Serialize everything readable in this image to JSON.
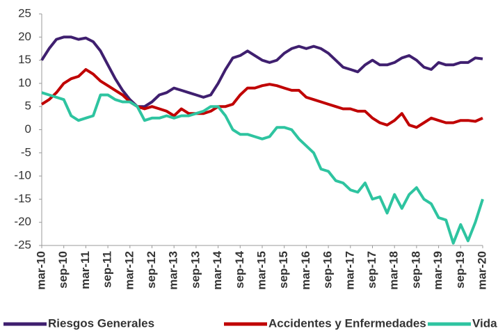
{
  "chart_data": {
    "type": "line",
    "categories": [
      "mar-10",
      null,
      null,
      "sep-10",
      null,
      null,
      "mar-11",
      null,
      null,
      "sep-11",
      null,
      null,
      "mar-12",
      null,
      null,
      "sep-12",
      null,
      null,
      "mar-13",
      null,
      null,
      "sep-13",
      null,
      null,
      "mar-14",
      null,
      null,
      "sep-14",
      null,
      null,
      "mar-15",
      null,
      null,
      "sep-15",
      null,
      null,
      "mar-16",
      null,
      null,
      "sep-16",
      null,
      null,
      "mar-17",
      null,
      null,
      "sep-17",
      null,
      null,
      "mar-18",
      null,
      null,
      "sep-18",
      null,
      null,
      "mar-19",
      null,
      null,
      "sep-19",
      null,
      null,
      "mar-20"
    ],
    "series": [
      {
        "name": "Riesgos Generales",
        "color": "#3f1f6f",
        "values": [
          15,
          17.5,
          19.5,
          20,
          20,
          19.5,
          19.8,
          19,
          17,
          14,
          11,
          8.5,
          6.5,
          5,
          5,
          6,
          7.5,
          8,
          9,
          8.5,
          8,
          7.5,
          7,
          7.5,
          10,
          13,
          15.5,
          16,
          17,
          16,
          15,
          14.5,
          15,
          16.5,
          17.5,
          18,
          17.5,
          18,
          17.5,
          16.5,
          15,
          13.5,
          13,
          12.5,
          14,
          15,
          14,
          14,
          14.5,
          15.5,
          16,
          15,
          13.5,
          13,
          14.5,
          14,
          14,
          14.5,
          14.5,
          15.5,
          15.3
        ]
      },
      {
        "name": "Accidentes y Enfermedades",
        "color": "#c00000",
        "values": [
          5.5,
          6.5,
          8,
          10,
          11,
          11.5,
          13,
          12,
          10.5,
          9.5,
          8.5,
          7.5,
          6,
          5,
          4.5,
          5,
          4.5,
          4,
          3,
          4.5,
          3.5,
          3.5,
          3.5,
          4,
          5,
          5,
          5.5,
          7.5,
          9,
          9,
          9.5,
          9.8,
          9.5,
          9,
          8.5,
          8.5,
          7,
          6.5,
          6,
          5.5,
          5,
          4.5,
          4.5,
          4,
          4,
          2.5,
          1.5,
          1,
          2,
          3.5,
          1,
          0.5,
          1.5,
          2.5,
          2,
          1.5,
          1.5,
          2,
          2,
          1.8,
          2.5
        ]
      },
      {
        "name": "Vida",
        "color": "#2ec4a0",
        "values": [
          8,
          7.5,
          7,
          6.5,
          3,
          2,
          2.5,
          3,
          7.5,
          7.5,
          6.5,
          6,
          6,
          5,
          2,
          2.5,
          2.5,
          3,
          2.5,
          3,
          3,
          3.5,
          4,
          5,
          5,
          3,
          0,
          -1,
          -1,
          -1.5,
          -2,
          -1.5,
          0.5,
          0.5,
          0,
          -2,
          -3.5,
          -5,
          -8.5,
          -9,
          -11,
          -11.5,
          -13,
          -13.5,
          -11.5,
          -15,
          -14.5,
          -18,
          -14,
          -17,
          -14,
          -12.5,
          -15,
          -16,
          -19,
          -19.5,
          -24.5,
          -20.5,
          -24,
          -20,
          -15
        ]
      }
    ],
    "ylim": [
      -25,
      25
    ],
    "yticks": [
      -25,
      -20,
      -15,
      -10,
      -5,
      0,
      5,
      10,
      15,
      20,
      25
    ],
    "grid": false,
    "legend": "bottom"
  }
}
